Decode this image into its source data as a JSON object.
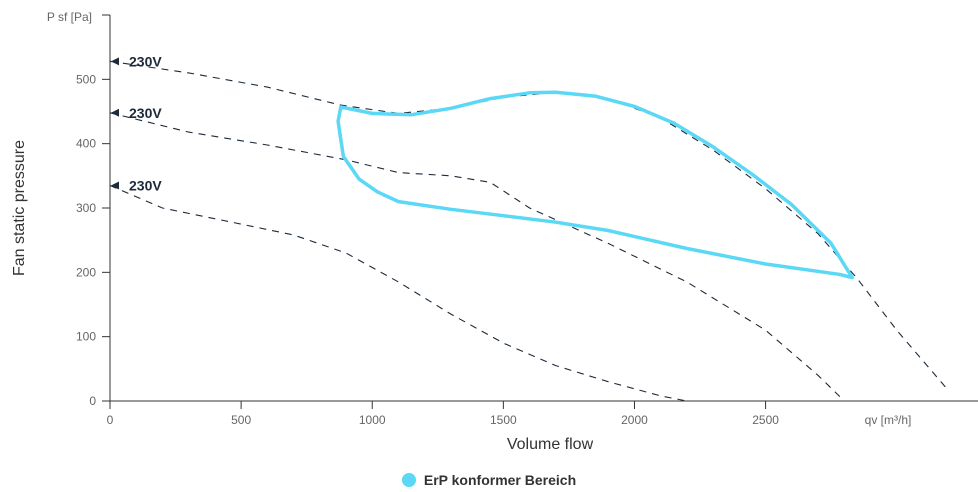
{
  "colors": {
    "erp": "#5ad8f5",
    "curve": "#1c2a3a",
    "axis": "#333333"
  },
  "chart_data": {
    "type": "line",
    "xlabel": "Volume flow",
    "ylabel": "Fan static pressure",
    "x_unit": "qv [m³/h]",
    "y_unit": "P sf [Pa]",
    "xlim": [
      0,
      3310
    ],
    "ylim": [
      0,
      600
    ],
    "x_ticks": [
      0,
      500,
      1000,
      1500,
      2000,
      2500
    ],
    "y_ticks": [
      0,
      100,
      200,
      300,
      400,
      500
    ],
    "grid": false,
    "legend_position": "bottom-center",
    "series": [
      {
        "label": "230V",
        "style": "dashed",
        "points": [
          [
            0,
            528
          ],
          [
            300,
            510
          ],
          [
            600,
            488
          ],
          [
            880,
            460
          ],
          [
            1100,
            447
          ],
          [
            1300,
            455
          ],
          [
            1500,
            472
          ],
          [
            1700,
            480
          ],
          [
            1900,
            470
          ],
          [
            2100,
            440
          ],
          [
            2300,
            390
          ],
          [
            2500,
            330
          ],
          [
            2700,
            260
          ],
          [
            2850,
            190
          ],
          [
            3000,
            110
          ],
          [
            3200,
            15
          ]
        ]
      },
      {
        "label": "230V",
        "style": "dashed",
        "points": [
          [
            0,
            448
          ],
          [
            300,
            418
          ],
          [
            600,
            398
          ],
          [
            900,
            375
          ],
          [
            1100,
            355
          ],
          [
            1300,
            350
          ],
          [
            1450,
            340
          ],
          [
            1600,
            300
          ],
          [
            1900,
            245
          ],
          [
            2200,
            185
          ],
          [
            2500,
            110
          ],
          [
            2700,
            40
          ],
          [
            2800,
            0
          ]
        ]
      },
      {
        "label": "230V",
        "style": "dashed",
        "points": [
          [
            0,
            335
          ],
          [
            200,
            300
          ],
          [
            500,
            275
          ],
          [
            700,
            258
          ],
          [
            900,
            230
          ],
          [
            1100,
            185
          ],
          [
            1300,
            135
          ],
          [
            1500,
            90
          ],
          [
            1700,
            55
          ],
          [
            1900,
            30
          ],
          [
            2100,
            8
          ],
          [
            2200,
            0
          ]
        ]
      }
    ],
    "erp_area": {
      "label": "ErP konformer Bereich",
      "points": [
        [
          880,
          457
        ],
        [
          1000,
          447
        ],
        [
          1150,
          445
        ],
        [
          1300,
          455
        ],
        [
          1450,
          470
        ],
        [
          1600,
          479
        ],
        [
          1700,
          480
        ],
        [
          1850,
          474
        ],
        [
          2000,
          458
        ],
        [
          2150,
          432
        ],
        [
          2300,
          395
        ],
        [
          2450,
          352
        ],
        [
          2600,
          305
        ],
        [
          2750,
          245
        ],
        [
          2830,
          192
        ],
        [
          2780,
          197
        ],
        [
          2500,
          213
        ],
        [
          2200,
          237
        ],
        [
          1900,
          265
        ],
        [
          1700,
          278
        ],
        [
          1500,
          288
        ],
        [
          1300,
          298
        ],
        [
          1100,
          310
        ],
        [
          1020,
          325
        ],
        [
          950,
          345
        ],
        [
          890,
          380
        ],
        [
          875,
          420
        ],
        [
          870,
          435
        ],
        [
          880,
          457
        ]
      ]
    }
  }
}
